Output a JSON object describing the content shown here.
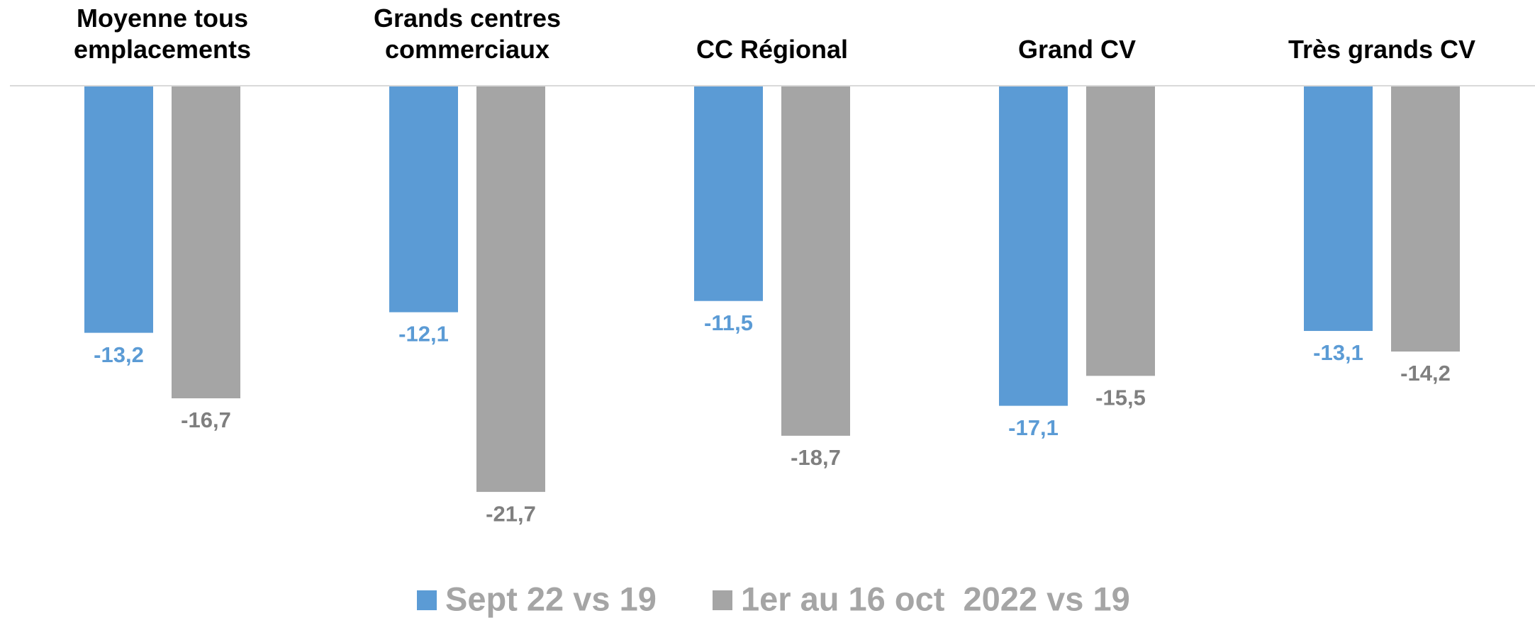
{
  "chart_data": {
    "type": "bar",
    "categories": [
      "Moyenne tous emplacements",
      "Grands centres commerciaux",
      "CC Régional",
      "Grand CV",
      "Très grands CV"
    ],
    "series": [
      {
        "name": "Sept 22 vs 19",
        "color": "#5b9bd5",
        "label_color": "#5b9bd5",
        "values": [
          -13.2,
          -12.1,
          -11.5,
          -17.1,
          -13.1
        ],
        "value_labels": [
          "-13,2",
          "-12,1",
          "-11,5",
          "-17,1",
          "-13,1"
        ]
      },
      {
        "name": "1er au 16 oct  2022 vs 19",
        "color": "#a5a5a5",
        "label_color": "#7f7f7f",
        "values": [
          -16.7,
          -21.7,
          -18.7,
          -15.5,
          -14.2
        ],
        "value_labels": [
          "-16,7",
          "-21,7",
          "-18,7",
          "-15,5",
          "-14,2"
        ]
      }
    ],
    "ylim": [
      -22,
      0
    ],
    "legend": "bottom"
  }
}
